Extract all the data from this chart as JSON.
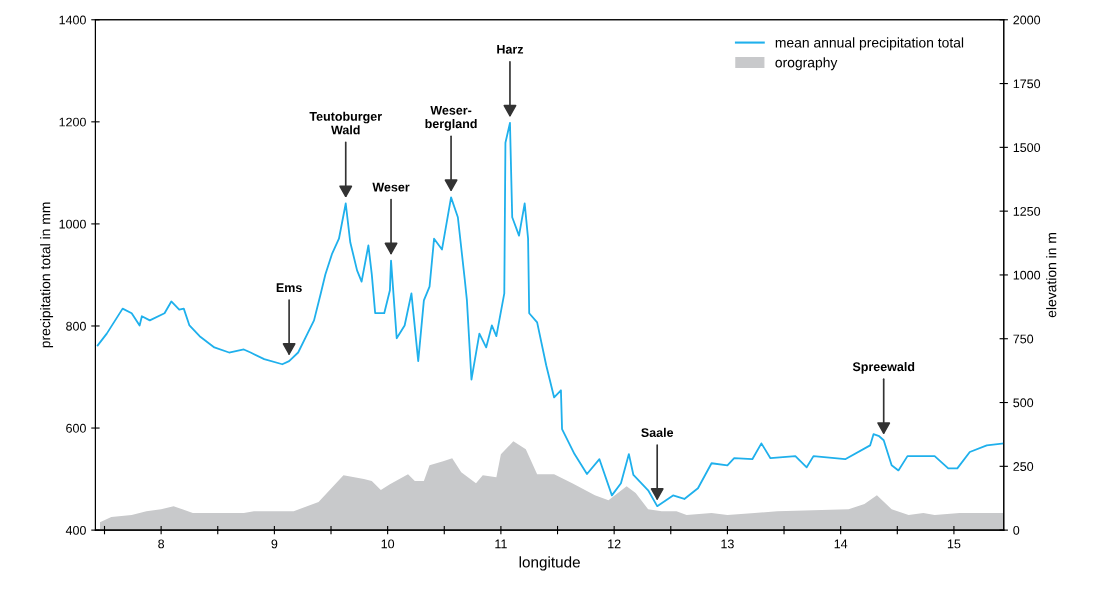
{
  "chart_data": {
    "type": "line",
    "xlabel": "longitude",
    "ylabel": "precipitation total in mm",
    "y2label": "elevation in m",
    "xlim": [
      7.42,
      15.44
    ],
    "xticks": [
      {
        "value": 7.5,
        "label": null
      },
      8,
      {
        "value": 8.5,
        "label": null
      },
      9,
      {
        "value": 9.5,
        "label": null
      },
      10,
      {
        "value": 10.5,
        "label": null
      },
      11,
      {
        "value": 11.5,
        "label": null
      },
      12,
      {
        "value": 12.5,
        "label": null
      },
      13,
      {
        "value": 13.5,
        "label": null
      },
      14,
      {
        "value": 14.5,
        "label": null
      },
      15
    ],
    "ylim": [
      400,
      1400
    ],
    "yticks": [
      400,
      600,
      800,
      1000,
      1200,
      1400
    ],
    "y2lim": [
      0,
      2000
    ],
    "y2ticks": [
      0,
      250,
      500,
      750,
      1000,
      1250,
      1500,
      1750,
      2000
    ],
    "legend": "top right",
    "grid": false,
    "series": [
      {
        "name": "mean annual precipitation total",
        "color": "#1fb0ec",
        "x": [
          7.44,
          7.52,
          7.66,
          7.74,
          7.81,
          7.83,
          7.9,
          8.03,
          8.09,
          8.16,
          8.2,
          8.25,
          8.34,
          8.47,
          8.6,
          8.73,
          8.79,
          8.91,
          9.07,
          9.13,
          9.21,
          9.29,
          9.35,
          9.41,
          9.45,
          9.51,
          9.57,
          9.63,
          9.67,
          9.73,
          9.77,
          9.83,
          9.86,
          9.89,
          9.97,
          10.02,
          10.03,
          10.08,
          10.15,
          10.21,
          10.27,
          10.32,
          10.37,
          10.41,
          10.48,
          10.56,
          10.62,
          10.68,
          10.7,
          10.74,
          10.81,
          10.87,
          10.92,
          10.96,
          11.03,
          11.04,
          11.08,
          11.1,
          11.16,
          11.21,
          11.24,
          11.25,
          11.32,
          11.4,
          11.47,
          11.53,
          11.54,
          11.65,
          11.76,
          11.87,
          11.98,
          12.06,
          12.13,
          12.17,
          12.3,
          12.38,
          12.52,
          12.62,
          12.74,
          12.86,
          13.0,
          13.06,
          13.22,
          13.3,
          13.38,
          13.6,
          13.7,
          13.76,
          14.04,
          14.26,
          14.29,
          14.34,
          14.38,
          14.45,
          14.51,
          14.59,
          14.83,
          14.95,
          15.03,
          15.14,
          15.29,
          15.44
        ],
        "values": [
          762,
          785,
          834,
          825,
          801,
          819,
          811,
          825,
          848,
          832,
          834,
          801,
          780,
          758,
          748,
          754,
          748,
          735,
          725,
          731,
          748,
          784,
          811,
          864,
          901,
          942,
          971,
          1040,
          964,
          909,
          887,
          958,
          901,
          825,
          825,
          870,
          928,
          776,
          801,
          864,
          731,
          850,
          877,
          971,
          950,
          1052,
          1013,
          893,
          850,
          695,
          785,
          758,
          801,
          780,
          864,
          1159,
          1198,
          1013,
          977,
          1040,
          971,
          825,
          807,
          723,
          660,
          674,
          598,
          549,
          510,
          539,
          468,
          492,
          549,
          508,
          478,
          447,
          468,
          461,
          482,
          531,
          527,
          541,
          539,
          570,
          541,
          545,
          523,
          545,
          539,
          566,
          588,
          584,
          576,
          527,
          517,
          545,
          545,
          521,
          521,
          553,
          566,
          570
        ]
      },
      {
        "name": "orography",
        "type": "area",
        "axis": "y2",
        "color": "#c8c9cb",
        "x": [
          7.46,
          7.56,
          7.74,
          7.87,
          8.0,
          8.11,
          8.28,
          8.73,
          8.82,
          9.17,
          9.39,
          9.61,
          9.79,
          9.86,
          9.94,
          10.02,
          10.18,
          10.24,
          10.32,
          10.37,
          10.49,
          10.57,
          10.65,
          10.78,
          10.84,
          10.96,
          11.0,
          11.11,
          11.22,
          11.32,
          11.47,
          11.63,
          11.83,
          11.95,
          12.11,
          12.19,
          12.3,
          12.42,
          12.55,
          12.64,
          12.86,
          13.0,
          13.24,
          13.44,
          14.07,
          14.21,
          14.32,
          14.45,
          14.6,
          14.73,
          14.83,
          15.05,
          15.44
        ],
        "values": [
          31,
          51,
          59,
          74,
          82,
          94,
          67,
          67,
          74,
          74,
          110,
          215,
          200,
          192,
          157,
          180,
          219,
          192,
          192,
          254,
          270,
          282,
          227,
          184,
          215,
          207,
          297,
          348,
          317,
          219,
          219,
          184,
          137,
          117,
          172,
          145,
          82,
          74,
          74,
          59,
          67,
          59,
          67,
          74,
          82,
          102,
          137,
          82,
          59,
          67,
          59,
          67,
          67
        ]
      }
    ],
    "annotations": [
      {
        "text": "Ems",
        "x": 9.13,
        "y": 731
      },
      {
        "text": "Teutoburger\nWald",
        "x": 9.63,
        "y": 1040
      },
      {
        "text": "Weser",
        "x": 10.03,
        "y": 928
      },
      {
        "text": "Weser-\nbergland",
        "x": 10.56,
        "y": 1052
      },
      {
        "text": "Harz",
        "x": 11.08,
        "y": 1198
      },
      {
        "text": "Saale",
        "x": 12.38,
        "y": 447
      },
      {
        "text": "Spreewald",
        "x": 14.38,
        "y": 576
      }
    ]
  }
}
